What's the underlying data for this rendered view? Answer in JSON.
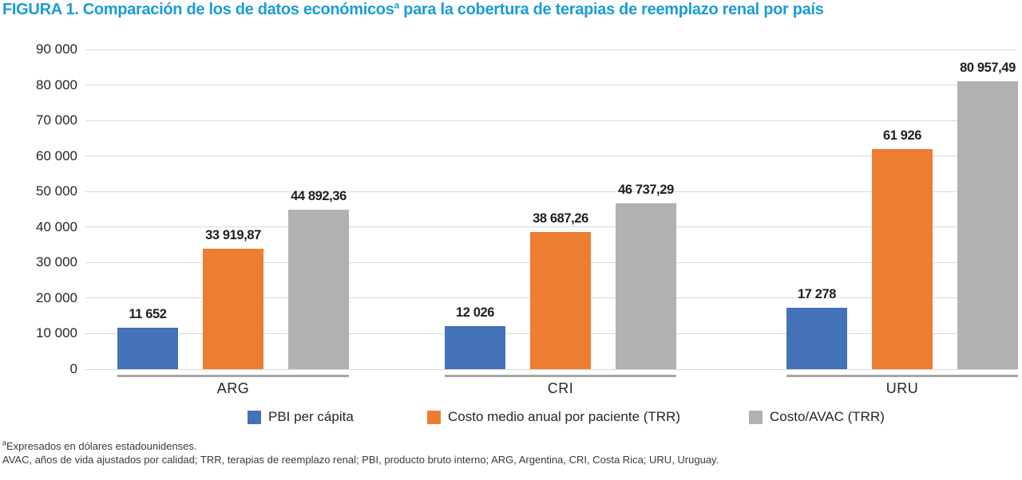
{
  "title": {
    "prefix": "FIGURA 1. Comparación de los de datos económicos",
    "superscript": "a",
    "suffix": " para la cobertura de terapias de reemplazo renal por país"
  },
  "chart_data": {
    "type": "bar",
    "categories": [
      "ARG",
      "CRI",
      "URU"
    ],
    "series": [
      {
        "name": "PBI per cápita",
        "color": "#4472b8",
        "values": [
          11652,
          12026,
          17278
        ],
        "labels": [
          "11 652",
          "12 026",
          "17 278"
        ]
      },
      {
        "name": "Costo medio anual por paciente (TRR)",
        "color": "#ed7d31",
        "values": [
          33919.87,
          38687.26,
          61926
        ],
        "labels": [
          "33 919,87",
          "38 687,26",
          "61 926"
        ]
      },
      {
        "name": "Costo/AVAC (TRR)",
        "color": "#b1b1b4",
        "values": [
          44892.36,
          46737.29,
          80957.49
        ],
        "labels": [
          "44 892,36",
          "46 737,29",
          "80 957,49"
        ]
      }
    ],
    "title": "FIGURA 1. Comparación de los de datos económicosª para la cobertura de terapias de reemplazo renal por país",
    "xlabel": "",
    "ylabel": "",
    "ylim": [
      0,
      90000
    ],
    "ytick_step": 10000,
    "ytick_labels": [
      "0",
      "10 000",
      "20 000",
      "30 000",
      "40 000",
      "50 000",
      "60 000",
      "70 000",
      "80 000",
      "90 000"
    ],
    "grid": true,
    "legend_position": "bottom",
    "value_decimal_separator": ","
  },
  "footnotes": {
    "line1_superscript": "a",
    "line1": "Expresados en dólares estadounidenses.",
    "line2": "AVAC, años de vida ajustados por calidad; TRR, terapias de reemplazo renal; PBI, producto bruto interno; ARG, Argentina, CRI, Costa Rica; URU, Uruguay."
  },
  "colors": {
    "title_blue": "#1a9cd8",
    "bar_blue": "#4472b8",
    "bar_orange": "#ed7d31",
    "bar_gray": "#b1b1b4",
    "gridline": "#d9d9d9",
    "category_underline": "#a6a6a6",
    "text": "#262626"
  }
}
